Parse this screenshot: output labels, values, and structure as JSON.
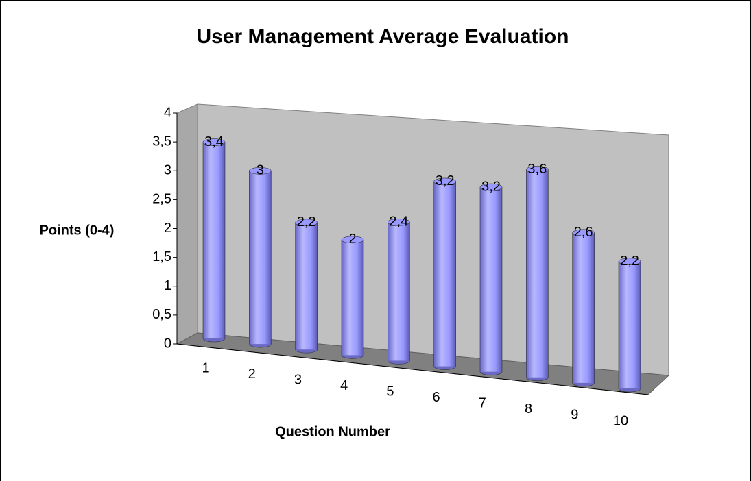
{
  "chart_data": {
    "type": "bar",
    "title": "User Management Average Evaluation",
    "x_label": "Question Number",
    "y_label": "Points (0-4)",
    "categories": [
      "1",
      "2",
      "3",
      "4",
      "5",
      "6",
      "7",
      "8",
      "9",
      "10"
    ],
    "values": [
      3.4,
      3,
      2.2,
      2,
      2.4,
      3.2,
      3.2,
      3.6,
      2.6,
      2.2
    ],
    "value_labels": [
      "3,4",
      "3",
      "2,2",
      "2",
      "2,4",
      "3,2",
      "3,2",
      "3,6",
      "2,6",
      "2,2"
    ],
    "color": "#9999ff",
    "ylim": [
      0,
      4
    ],
    "yticks": [
      0,
      {
        "value": 0.5,
        "label": "0,5"
      },
      1,
      {
        "value": 1.5,
        "label": "1,5"
      },
      2,
      {
        "value": 2.5,
        "label": "2,5"
      },
      3,
      {
        "value": 3.5,
        "label": "3,5"
      },
      4
    ],
    "grid": false
  }
}
